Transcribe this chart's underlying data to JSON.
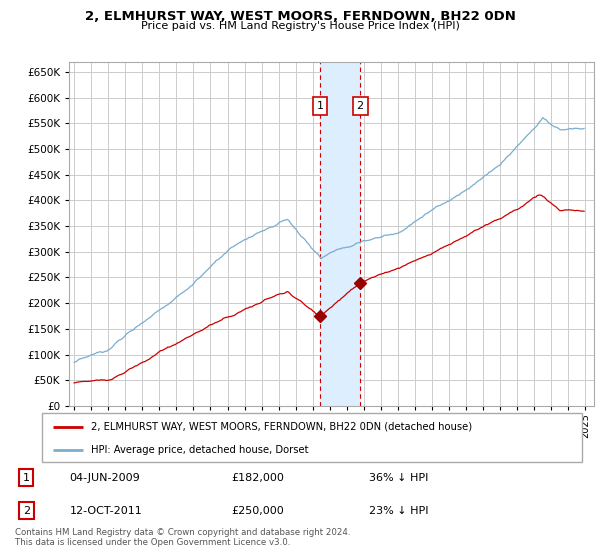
{
  "title": "2, ELMHURST WAY, WEST MOORS, FERNDOWN, BH22 0DN",
  "subtitle": "Price paid vs. HM Land Registry's House Price Index (HPI)",
  "legend_label_red": "2, ELMHURST WAY, WEST MOORS, FERNDOWN, BH22 0DN (detached house)",
  "legend_label_blue": "HPI: Average price, detached house, Dorset",
  "transaction1_label": "1",
  "transaction1_date": "04-JUN-2009",
  "transaction1_price": "£182,000",
  "transaction1_hpi": "36% ↓ HPI",
  "transaction2_label": "2",
  "transaction2_date": "12-OCT-2011",
  "transaction2_price": "£250,000",
  "transaction2_hpi": "23% ↓ HPI",
  "footnote": "Contains HM Land Registry data © Crown copyright and database right 2024.\nThis data is licensed under the Open Government Licence v3.0.",
  "red_color": "#cc0000",
  "blue_color": "#7aadcf",
  "shaded_color": "#ddeeff",
  "marker_color": "#990000",
  "background_color": "#ffffff",
  "grid_color": "#cccccc",
  "ylim_min": 0,
  "ylim_max": 670000,
  "transaction1_year": 2009.42,
  "transaction2_year": 2011.78
}
